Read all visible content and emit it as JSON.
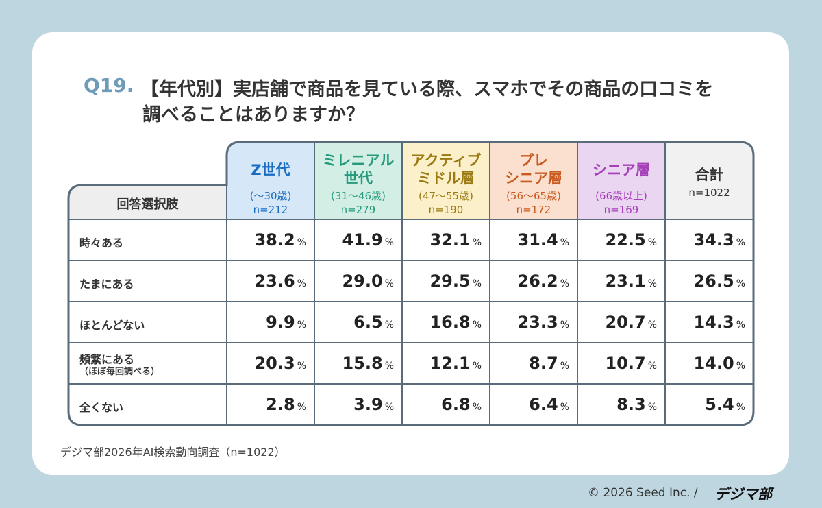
{
  "title": {
    "number": "Q19.",
    "lines": [
      "【年代別】実店舗で商品を見ている際、スマホでその商品の口コミを",
      "調べることはありますか？"
    ]
  },
  "table": {
    "corner": "回答選択肢",
    "unit": "%",
    "columns": [
      {
        "name": [
          "Z世代"
        ],
        "sub": "(〜30歳)",
        "n": "n=212",
        "color": "#1a6cc2",
        "bg": "#d6e8f7"
      },
      {
        "name": [
          "ミレニアル",
          "世代"
        ],
        "sub": "(31〜46歳)",
        "n": "n=279",
        "color": "#259a7c",
        "bg": "#d3efe5"
      },
      {
        "name": [
          "アクティブ",
          "ミドル層"
        ],
        "sub": "(47〜55歳)",
        "n": "n=190",
        "color": "#9a7a12",
        "bg": "#fbf0c9"
      },
      {
        "name": [
          "プレ",
          "シニア層"
        ],
        "sub": "(56〜65歳)",
        "n": "n=172",
        "color": "#c95a1f",
        "bg": "#fbe0cf"
      },
      {
        "name": [
          "シニア層"
        ],
        "sub": "(66歳以上)",
        "n": "n=169",
        "color": "#a43fb8",
        "bg": "#ead6f0"
      },
      {
        "name": [
          "合計"
        ],
        "n": "n=1022",
        "color": "#333333",
        "bg": "#f1f1f1"
      }
    ],
    "rows": [
      {
        "label": [
          "時々ある"
        ],
        "values": [
          "38.2",
          "41.9",
          "32.1",
          "31.4",
          "22.5",
          "34.3"
        ]
      },
      {
        "label": [
          "たまにある"
        ],
        "values": [
          "23.6",
          "29.0",
          "29.5",
          "26.2",
          "23.1",
          "26.5"
        ]
      },
      {
        "label": [
          "ほとんどない"
        ],
        "values": [
          "9.9",
          "6.5",
          "16.8",
          "23.3",
          "20.7",
          "14.3"
        ]
      },
      {
        "label": [
          "頻繁にある",
          "（ほぼ毎回調べる）"
        ],
        "values": [
          "20.3",
          "15.8",
          "12.1",
          "8.7",
          "10.7",
          "14.0"
        ]
      },
      {
        "label": [
          "全くない"
        ],
        "values": [
          "2.8",
          "3.9",
          "6.8",
          "6.4",
          "8.3",
          "5.4"
        ]
      }
    ]
  },
  "source": "デジマ部2026年AI検索動向調査（n=1022）",
  "footer": {
    "copyright": "© 2026 Seed Inc. /",
    "brand": "デジマ部"
  }
}
